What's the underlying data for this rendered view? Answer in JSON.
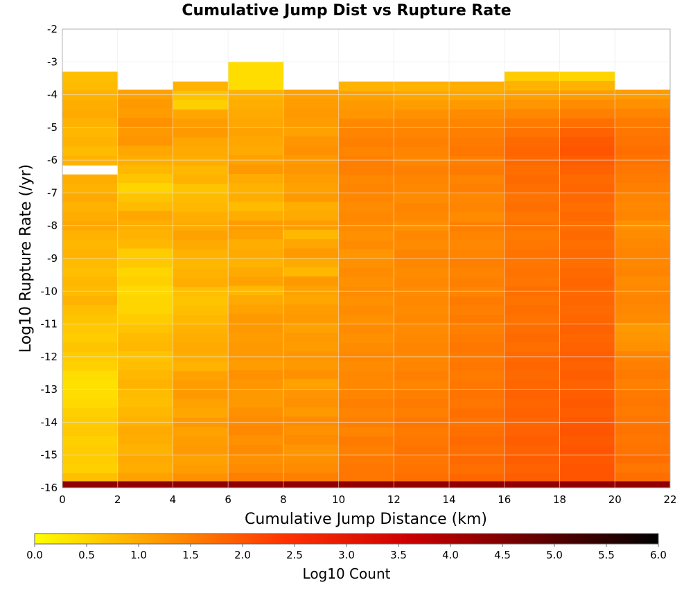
{
  "chart_data": {
    "type": "heatmap",
    "title": "Cumulative Jump Dist vs Rupture Rate",
    "xlabel": "Cumulative Jump Distance (km)",
    "ylabel": "Log10 Rupture Rate (/yr)",
    "colorbar_label": "Log10 Count",
    "xlim": [
      0,
      22
    ],
    "ylim": [
      -16,
      -2
    ],
    "x_ticks": [
      "0",
      "2",
      "4",
      "6",
      "8",
      "10",
      "12",
      "14",
      "16",
      "18",
      "20",
      "22"
    ],
    "y_ticks": [
      "-2",
      "-3",
      "-4",
      "-5",
      "-6",
      "-7",
      "-8",
      "-9",
      "-10",
      "-11",
      "-12",
      "-13",
      "-14",
      "-15",
      "-16"
    ],
    "colorbar_ticks": [
      "0.0",
      "0.5",
      "1.0",
      "1.5",
      "2.0",
      "2.5",
      "3.0",
      "3.5",
      "4.0",
      "4.5",
      "5.0",
      "5.5",
      "6.0"
    ],
    "colorbar_range": [
      0,
      6
    ],
    "colormap": [
      "#ffff00",
      "#ff9900",
      "#ff3300",
      "#cc0000",
      "#660000",
      "#000000"
    ],
    "grid": true,
    "x_bins_left_edges": [
      0,
      2,
      4,
      6,
      8,
      10,
      12,
      14,
      16,
      18,
      20
    ],
    "x_bin_width": 2,
    "y_bin_height": 0.285,
    "columns": [
      {
        "x": 0,
        "top": -3.3,
        "values": [
          0.75,
          0.8,
          0.9,
          0.95,
          1.0,
          0.9,
          0.85,
          0.9,
          0.8,
          0.9,
          0.85,
          0.95,
          0.9,
          1.0,
          0.9,
          0.95,
          1.05,
          0.9,
          0.85,
          0.9,
          0.8,
          0.75,
          0.85,
          0.8,
          0.9,
          0.75,
          0.7,
          0.65,
          0.6,
          0.7,
          0.6,
          0.55,
          0.4,
          0.35,
          0.4,
          0.45,
          0.55,
          0.6,
          0.65,
          0.55,
          0.6,
          0.6,
          0.55,
          0.6,
          0.7,
          0.75
        ],
        "bottom_value": 4.3,
        "gaps": [
          -6.4
        ]
      },
      {
        "x": 2,
        "top": -3.85,
        "values": [
          1.1,
          1.2,
          1.15,
          1.3,
          1.2,
          1.25,
          1.05,
          0.95,
          0.85,
          0.7,
          0.5,
          0.7,
          0.8,
          1.05,
          0.95,
          0.9,
          0.85,
          0.6,
          0.65,
          0.5,
          0.55,
          0.45,
          0.5,
          0.5,
          0.6,
          0.7,
          0.8,
          0.85,
          0.7,
          0.75,
          0.85,
          0.9,
          0.8,
          0.75,
          0.85,
          0.9,
          1.0,
          0.95,
          0.9,
          1.0,
          0.95,
          0.8,
          0.85,
          0.9,
          1.0,
          1.05,
          1.1
        ],
        "bottom_value": 4.3
      },
      {
        "x": 4,
        "top": -3.6,
        "values": [
          0.9,
          0.7,
          0.55,
          1.05,
          1.15,
          1.2,
          1.05,
          1.0,
          0.95,
          0.85,
          0.9,
          0.7,
          0.8,
          0.85,
          0.95,
          1.0,
          1.1,
          1.0,
          0.9,
          0.85,
          0.9,
          0.95,
          0.75,
          0.7,
          0.75,
          0.85,
          0.9,
          0.95,
          1.0,
          0.95,
          0.9,
          1.1,
          1.15,
          1.2,
          1.1,
          1.05,
          1.2,
          1.1,
          1.15,
          1.2,
          1.1,
          1.15,
          1.2,
          1.3,
          1.25,
          1.2,
          1.3
        ],
        "bottom_value": 4.3
      },
      {
        "x": 6,
        "top": -3.0,
        "values": [
          0.4,
          0.4,
          0.4,
          0.9,
          0.95,
          1.0,
          1.05,
          1.1,
          1.05,
          1.0,
          1.1,
          1.2,
          1.0,
          0.9,
          0.95,
          0.8,
          0.95,
          1.15,
          1.1,
          0.95,
          1.0,
          0.9,
          1.0,
          1.1,
          0.85,
          1.0,
          1.1,
          1.2,
          1.2,
          1.15,
          1.2,
          1.2,
          1.15,
          1.3,
          1.25,
          1.2,
          1.2,
          1.3,
          1.35,
          1.4,
          1.3,
          1.35,
          1.3,
          1.35,
          1.4,
          1.45,
          1.4,
          1.45,
          1.5
        ],
        "bottom_value": 4.3
      },
      {
        "x": 8,
        "top": -3.85,
        "values": [
          1.1,
          1.15,
          1.2,
          1.15,
          1.1,
          1.25,
          1.3,
          1.2,
          1.25,
          1.15,
          1.1,
          1.2,
          0.95,
          1.0,
          1.15,
          0.85,
          1.05,
          1.2,
          1.0,
          0.85,
          1.2,
          1.1,
          1.05,
          1.15,
          1.2,
          1.1,
          1.2,
          1.15,
          1.25,
          1.2,
          1.3,
          1.1,
          1.25,
          1.3,
          1.2,
          1.35,
          1.3,
          1.35,
          1.25,
          1.3,
          1.35,
          1.4,
          1.45,
          1.4,
          1.45,
          1.5,
          1.5
        ],
        "bottom_value": 4.3
      },
      {
        "x": 10,
        "top": -3.6,
        "values": [
          0.9,
          1.1,
          1.2,
          1.25,
          1.4,
          1.45,
          1.5,
          1.45,
          1.5,
          1.5,
          1.4,
          1.45,
          1.4,
          1.35,
          1.4,
          1.35,
          1.3,
          1.35,
          1.25,
          1.3,
          1.35,
          1.3,
          1.35,
          1.3,
          1.35,
          1.3,
          1.35,
          1.3,
          1.35,
          1.4,
          1.35,
          1.4,
          1.4,
          1.45,
          1.5,
          1.45,
          1.5,
          1.45,
          1.55,
          1.5,
          1.55,
          1.6,
          1.6,
          1.55,
          1.6,
          1.6,
          1.6
        ],
        "bottom_value": 4.3
      },
      {
        "x": 12,
        "top": -3.6,
        "values": [
          0.9,
          1.05,
          1.15,
          1.3,
          1.4,
          1.45,
          1.5,
          1.45,
          1.4,
          1.5,
          1.45,
          1.4,
          1.35,
          1.45,
          1.4,
          1.3,
          1.4,
          1.35,
          1.45,
          1.4,
          1.35,
          1.4,
          1.35,
          1.4,
          1.35,
          1.4,
          1.35,
          1.4,
          1.45,
          1.4,
          1.45,
          1.5,
          1.45,
          1.5,
          1.55,
          1.5,
          1.6,
          1.55,
          1.6,
          1.65,
          1.6,
          1.65,
          1.6,
          1.7,
          1.65,
          1.7,
          1.7
        ],
        "bottom_value": 4.3
      },
      {
        "x": 14,
        "top": -3.6,
        "values": [
          0.95,
          1.05,
          1.2,
          1.35,
          1.45,
          1.5,
          1.55,
          1.6,
          1.5,
          1.55,
          1.45,
          1.5,
          1.4,
          1.45,
          1.35,
          1.5,
          1.45,
          1.4,
          1.45,
          1.5,
          1.45,
          1.5,
          1.45,
          1.55,
          1.5,
          1.55,
          1.5,
          1.55,
          1.6,
          1.55,
          1.6,
          1.55,
          1.6,
          1.65,
          1.6,
          1.7,
          1.65,
          1.7,
          1.75,
          1.7,
          1.75,
          1.7,
          1.75,
          1.8,
          1.75,
          1.8,
          1.8
        ],
        "bottom_value": 4.3
      },
      {
        "x": 16,
        "top": -3.3,
        "values": [
          0.6,
          0.9,
          1.1,
          1.25,
          1.4,
          1.55,
          1.65,
          1.75,
          1.8,
          1.75,
          1.7,
          1.75,
          1.7,
          1.65,
          1.7,
          1.6,
          1.65,
          1.55,
          1.6,
          1.65,
          1.6,
          1.65,
          1.6,
          1.7,
          1.65,
          1.7,
          1.65,
          1.7,
          1.75,
          1.7,
          1.75,
          1.8,
          1.75,
          1.8,
          1.85,
          1.8,
          1.85,
          1.8,
          1.85,
          1.9,
          1.85,
          1.9,
          1.85,
          1.9,
          1.95,
          1.9,
          1.9,
          1.9
        ],
        "bottom_value": 4.3
      },
      {
        "x": 18,
        "top": -3.3,
        "values": [
          0.5,
          0.9,
          1.15,
          1.35,
          1.5,
          1.7,
          1.85,
          1.95,
          2.0,
          1.9,
          1.85,
          1.75,
          1.8,
          1.75,
          1.7,
          1.75,
          1.7,
          1.75,
          1.7,
          1.75,
          1.7,
          1.75,
          1.8,
          1.75,
          1.8,
          1.75,
          1.8,
          1.85,
          1.8,
          1.85,
          1.9,
          1.85,
          1.9,
          1.85,
          1.9,
          1.95,
          1.9,
          1.95,
          2.0,
          1.95,
          2.0,
          1.95,
          2.0,
          2.05,
          2.0,
          2.0
        ],
        "bottom_value": 4.3
      },
      {
        "x": 20,
        "top": -3.85,
        "values": [
          1.15,
          1.3,
          1.45,
          1.55,
          1.6,
          1.65,
          1.7,
          1.65,
          1.6,
          1.55,
          1.5,
          1.45,
          1.4,
          1.45,
          1.3,
          1.35,
          1.4,
          1.45,
          1.4,
          1.45,
          1.35,
          1.4,
          1.45,
          1.4,
          1.35,
          1.2,
          1.25,
          1.3,
          1.45,
          1.5,
          1.55,
          1.5,
          1.55,
          1.6,
          1.55,
          1.6,
          1.65,
          1.6,
          1.65,
          1.7,
          1.6,
          1.65,
          1.7,
          1.65,
          1.7,
          1.65,
          1.7
        ],
        "bottom_value": 4.3
      }
    ]
  }
}
